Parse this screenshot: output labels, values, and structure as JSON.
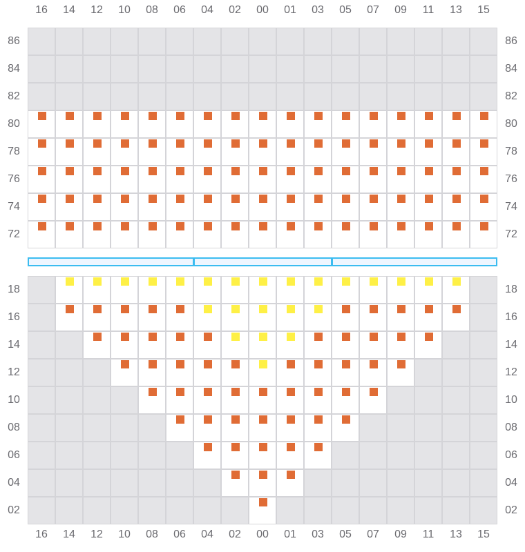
{
  "columns": [
    "16",
    "14",
    "12",
    "10",
    "08",
    "06",
    "04",
    "02",
    "00",
    "01",
    "03",
    "05",
    "07",
    "09",
    "11",
    "13",
    "15"
  ],
  "colors": {
    "unavailable": "#e4e4e7",
    "orange": "#e06c35",
    "yellow": "#fef046",
    "grid": "#d4d4d8",
    "divider": "#3bbcf0"
  },
  "status_codes": {
    "x": "unavailable",
    "o": "orange-seat",
    "y": "yellow-seat"
  },
  "upper_section": {
    "rows": [
      {
        "label": "86",
        "seats": "xxxxxxxxxxxxxxxxx"
      },
      {
        "label": "84",
        "seats": "xxxxxxxxxxxxxxxxx"
      },
      {
        "label": "82",
        "seats": "xxxxxxxxxxxxxxxxx"
      },
      {
        "label": "80",
        "seats": "ooooooooooooooooo"
      },
      {
        "label": "78",
        "seats": "ooooooooooooooooo"
      },
      {
        "label": "76",
        "seats": "ooooooooooooooooo"
      },
      {
        "label": "74",
        "seats": "ooooooooooooooooo"
      },
      {
        "label": "72",
        "seats": "ooooooooooooooooo"
      }
    ]
  },
  "divider_segments": 3,
  "lower_section": {
    "rows": [
      {
        "label": "18",
        "seats": "xyyyyyyyyyyyyyyyx"
      },
      {
        "label": "16",
        "seats": "xoooooyyyyyooooox"
      },
      {
        "label": "14",
        "seats": "xxoooooyyyoooooxx"
      },
      {
        "label": "12",
        "seats": "xxxoooooyoooooxxx"
      },
      {
        "label": "10",
        "seats": "xxxxoooooooooxxxx"
      },
      {
        "label": "08",
        "seats": "xxxxxoooooooxxxxx"
      },
      {
        "label": "06",
        "seats": "xxxxxxoooooxxxxxx"
      },
      {
        "label": "04",
        "seats": "xxxxxxxoooxxxxxxx"
      },
      {
        "label": "02",
        "seats": "xxxxxxxxoxxxxxxxx"
      }
    ]
  }
}
